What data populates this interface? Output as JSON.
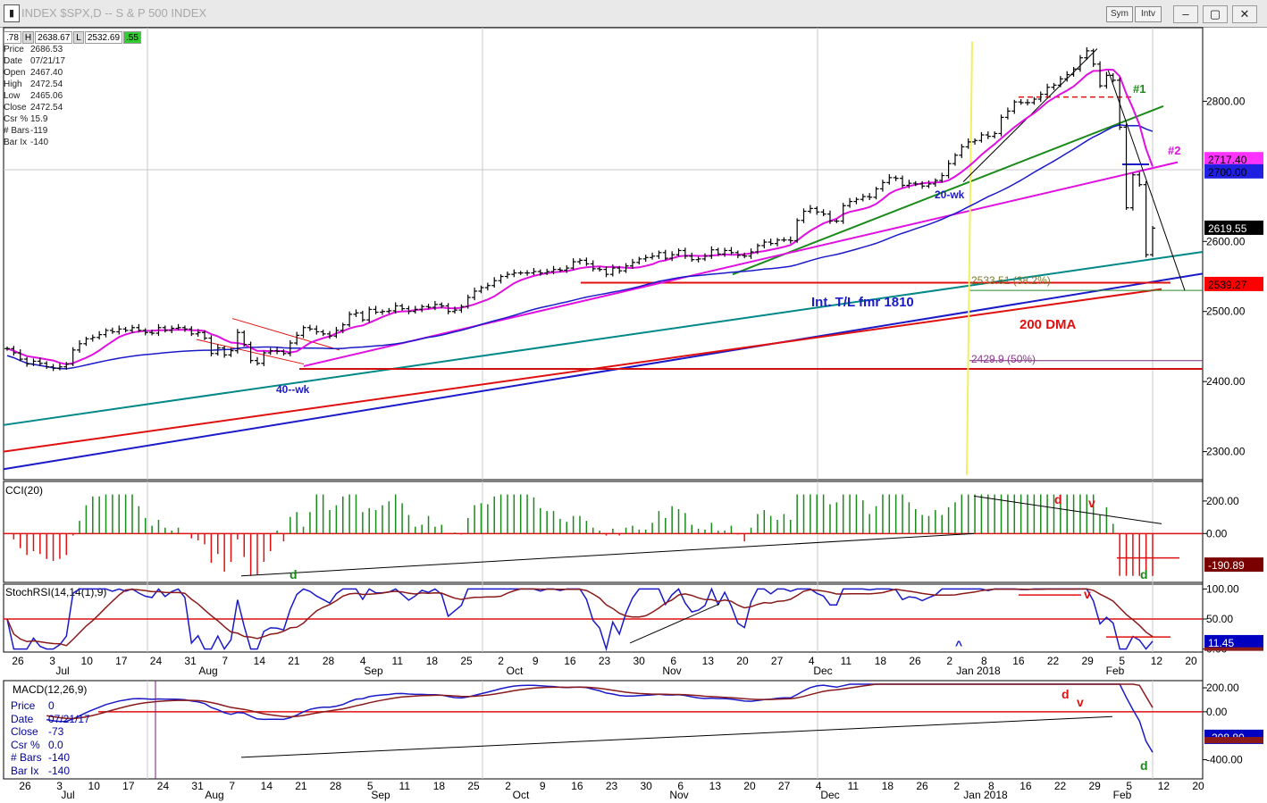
{
  "window": {
    "title": "INDEX $SPX,D -- S & P 500 INDEX",
    "buttons": [
      "Sym",
      "Intv"
    ],
    "controls": [
      "minimize",
      "maximize",
      "close"
    ]
  },
  "top_values": [
    ".78",
    "H",
    "2638.67",
    "L",
    "2532.69",
    ".55"
  ],
  "info_box": [
    [
      "Price",
      "2686.53"
    ],
    [
      "Date",
      "07/21/17"
    ],
    [
      "Open",
      "2467.40"
    ],
    [
      "High",
      "2472.54"
    ],
    [
      "Low",
      "2465.06"
    ],
    [
      "Close",
      "2472.54"
    ],
    [
      "Csr %",
      "15.9"
    ],
    [
      "# Bars",
      "-119"
    ],
    [
      "Bar Ix",
      "-140"
    ]
  ],
  "macd_info": [
    [
      "Price",
      "0"
    ],
    [
      "Date",
      "07/21/17"
    ],
    [
      "Close",
      "-73"
    ],
    [
      "Csr %",
      "0.0"
    ],
    [
      "# Bars",
      "-140"
    ],
    [
      "Bar Ix",
      "-140"
    ]
  ],
  "chart_data": [
    {
      "type": "line",
      "panel": "price",
      "ylim": [
        2260,
        2905
      ],
      "yticks": [
        2300,
        2400,
        2500,
        2600,
        2800
      ],
      "ytick_labels": [
        "2300.00",
        "2400.00",
        "2500.00",
        "2600.00",
        "2800.00"
      ],
      "value_labels": [
        {
          "text": "2717.40",
          "value": 2717.4,
          "bg": "#ff33ff",
          "fg": "#000000"
        },
        {
          "text": "2700.00",
          "value": 2700,
          "bg": "#2020e0",
          "fg": "#000000"
        },
        {
          "text": "2619.55",
          "value": 2619.55,
          "bg": "#000000",
          "fg": "#ffffff"
        },
        {
          "text": "2539.27",
          "value": 2539.27,
          "bg": "#ff0000",
          "fg": "#000000"
        }
      ],
      "closes": [
        2447,
        2441,
        2432,
        2425,
        2429,
        2426,
        2421,
        2419,
        2421,
        2425,
        2445,
        2454,
        2461,
        2463,
        2467,
        2473,
        2471,
        2475,
        2473,
        2477,
        2473,
        2470,
        2469,
        2477,
        2473,
        2476,
        2477,
        2475,
        2468,
        2470,
        2462,
        2440,
        2448,
        2438,
        2444,
        2470,
        2453,
        2430,
        2426,
        2441,
        2444,
        2443,
        2440,
        2455,
        2466,
        2477,
        2475,
        2471,
        2468,
        2465,
        2473,
        2481,
        2496,
        2498,
        2488,
        2503,
        2499,
        2500,
        2501,
        2508,
        2504,
        2500,
        2503,
        2507,
        2506,
        2510,
        2508,
        2500,
        2502,
        2507,
        2520,
        2529,
        2534,
        2537,
        2544,
        2550,
        2553,
        2555,
        2555,
        2555,
        2557,
        2555,
        2557,
        2560,
        2559,
        2562,
        2571,
        2573,
        2568,
        2561,
        2560,
        2553,
        2562,
        2558,
        2565,
        2570,
        2575,
        2577,
        2579,
        2584,
        2576,
        2581,
        2587,
        2579,
        2574,
        2575,
        2579,
        2588,
        2582,
        2587,
        2584,
        2580,
        2579,
        2585,
        2594,
        2599,
        2597,
        2602,
        2602,
        2601,
        2630,
        2643,
        2647,
        2642,
        2639,
        2629,
        2629,
        2651,
        2657,
        2660,
        2664,
        2663,
        2675,
        2684,
        2691,
        2690,
        2680,
        2683,
        2682,
        2679,
        2682,
        2687,
        2694,
        2711,
        2723,
        2735,
        2742,
        2744,
        2752,
        2750,
        2754,
        2777,
        2786,
        2799,
        2798,
        2798,
        2803,
        2810,
        2820,
        2823,
        2832,
        2838,
        2846,
        2862,
        2872,
        2853,
        2822,
        2837,
        2830,
        2763,
        2648,
        2695,
        2681,
        2581,
        2619
      ],
      "series": [
        {
          "name": "20-wk",
          "color": "#2020d0"
        },
        {
          "name": "40--wk",
          "color": "#2020d0"
        },
        {
          "name": "200 DMA",
          "color": "#e02020"
        }
      ],
      "annotations": [
        "#1",
        "#2",
        "20-wk",
        "40--wk",
        "Int. T/L fmr 1810",
        "200 DMA",
        "2533.51 (38.2%)",
        "2429.9 (50%)"
      ]
    },
    {
      "type": "bar",
      "panel": "CCI(20)",
      "title": "CCI(20)",
      "ylim": [
        -300,
        320
      ],
      "yticks": [
        200,
        0
      ],
      "ytick_labels": [
        "200.00",
        "0.00"
      ],
      "value_labels": [
        {
          "text": "-190.89",
          "value": -190.89,
          "bg": "#7a0000",
          "fg": "#ffffff"
        }
      ],
      "markers": [
        "d",
        "v",
        "d",
        "d"
      ]
    },
    {
      "type": "line",
      "panel": "StochRSI(14,14(1),9)",
      "title": "StochRSI(14,14(1),9)",
      "ylim": [
        -5,
        108
      ],
      "yticks": [
        100,
        50,
        0
      ],
      "ytick_labels": [
        "100.00",
        "50.00",
        "0.00"
      ],
      "value_labels": [
        {
          "text": "11.45",
          "value": 11.45,
          "bg": "#0000c0",
          "fg": "#ffffff"
        }
      ],
      "markers": [
        "v",
        "^"
      ]
    },
    {
      "type": "line",
      "panel": "MACD(12,26,9)",
      "title": "MACD(12,26,9)",
      "ylim": [
        -560,
        260
      ],
      "yticks": [
        200,
        0,
        -400
      ],
      "ytick_labels": [
        "200.00",
        "0.00",
        "-400.00"
      ],
      "value_labels": [
        {
          "text": "-208.80",
          "value": -208.8,
          "bg": "#0000c0",
          "fg": "#ffffff"
        }
      ],
      "markers": [
        "d",
        "v",
        "d"
      ]
    }
  ],
  "date_axis_upper": {
    "days": [
      "26",
      "3",
      "10",
      "17",
      "24",
      "31",
      "7",
      "14",
      "21",
      "28",
      "4",
      "11",
      "18",
      "25",
      "2",
      "9",
      "16",
      "23",
      "30",
      "6",
      "13",
      "20",
      "27",
      "4",
      "11",
      "18",
      "26",
      "2",
      "8",
      "16",
      "22",
      "29",
      "5",
      "12",
      "20"
    ],
    "months": [
      "Jul",
      "Aug",
      "Sep",
      "Oct",
      "Nov",
      "Dec",
      "Jan 2018",
      "Feb"
    ]
  },
  "date_axis_lower": {
    "days": [
      "26",
      "3",
      "10",
      "17",
      "24",
      "31",
      "7",
      "14",
      "21",
      "28",
      "5",
      "11",
      "18",
      "25",
      "2",
      "9",
      "16",
      "23",
      "30",
      "6",
      "13",
      "20",
      "27",
      "4",
      "11",
      "18",
      "26",
      "2",
      "8",
      "16",
      "22",
      "29",
      "5",
      "12",
      "20"
    ],
    "months": [
      "Jul",
      "Aug",
      "Sep",
      "Oct",
      "Nov",
      "Dec",
      "Jan 2018",
      "Feb"
    ]
  }
}
